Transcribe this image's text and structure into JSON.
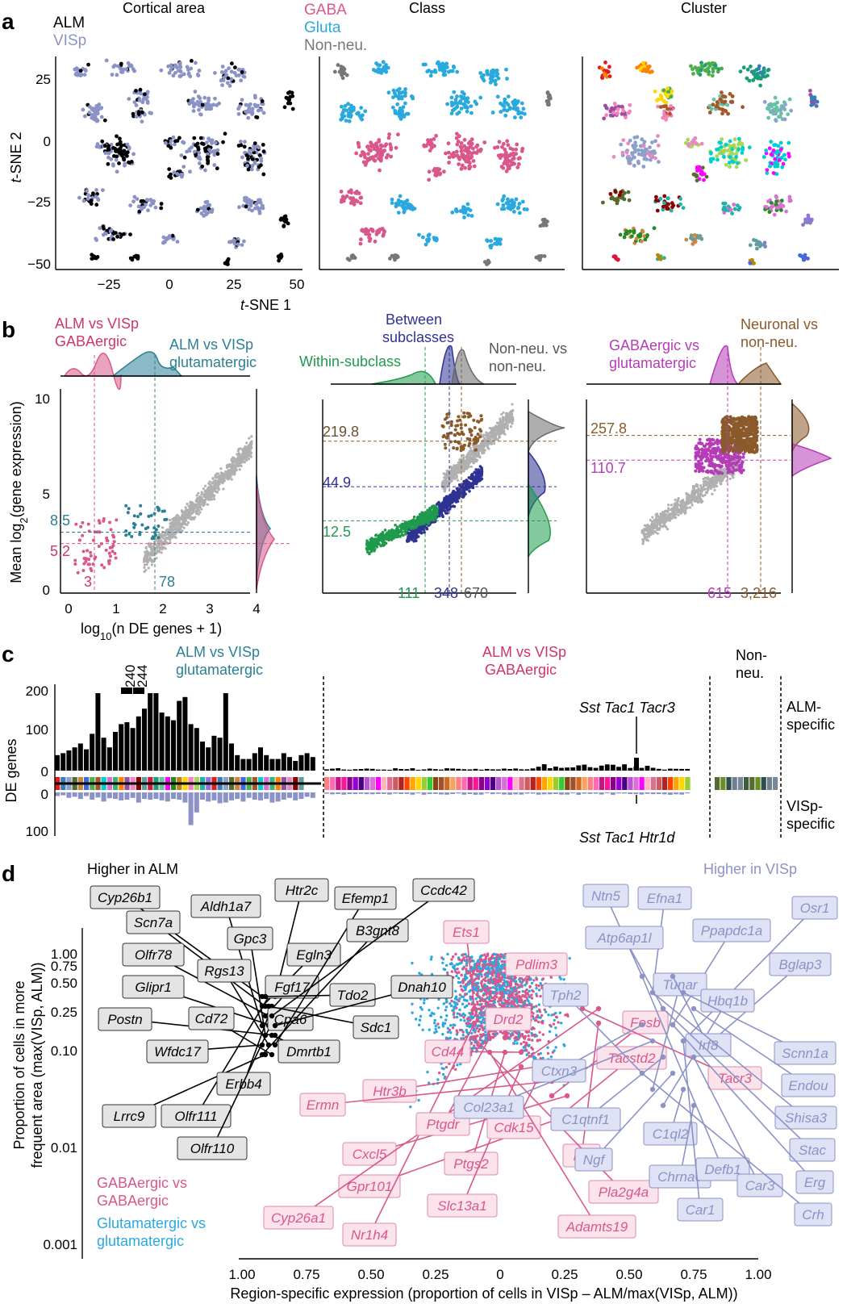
{
  "colors": {
    "alm": "#000000",
    "visp": "#8b93c6",
    "gaba": "#d9578b",
    "gluta": "#2aa9df",
    "nonneu": "#777777",
    "teal": "#2c7f95",
    "green": "#1f9a4c",
    "navy": "#2e3393",
    "brown": "#8b5a2b",
    "purple": "#b53cb6",
    "grey": "#b0b0b0"
  },
  "panel_a": {
    "letter": "a",
    "titles": [
      "Cortical area",
      "Class",
      "Cluster"
    ],
    "legend1": [
      "ALM",
      "VISp"
    ],
    "legend2": [
      "GABA",
      "Gluta",
      "Non-neu."
    ],
    "xlabel_main": "t",
    "xlabel_rest": "-SNE 1",
    "ylabel_main": "t",
    "ylabel_rest": "-SNE 2",
    "xticks": [
      "−25",
      "0",
      "25",
      "50"
    ],
    "yticks": [
      "25",
      "0",
      "−25",
      "−50"
    ]
  },
  "panel_b": {
    "letter": "b",
    "p1_title1": [
      "ALM vs VISp",
      "GABAergic"
    ],
    "p1_title2": [
      "ALM vs VISp",
      "glutamatergic"
    ],
    "p2_title_between": [
      "Between",
      "subclasses"
    ],
    "p2_title_within": "Within-subclass",
    "p2_title_nonneu": [
      "Non-neu. vs",
      "non-neu."
    ],
    "p3_title_gaba": [
      "GABAergic vs",
      "glutamatergic"
    ],
    "p3_title_neu": [
      "Neuronal vs",
      "non-neu."
    ],
    "ylabel_a": "Mean log",
    "ylabel_sub": "2",
    "ylabel_b": "(gene expression)",
    "xlabel_a": "log",
    "xlabel_sub": "10",
    "xlabel_b": "(n DE genes + 1)",
    "yticks": [
      "0",
      "5",
      "10"
    ],
    "xticks": [
      "0",
      "1",
      "2",
      "3",
      "4"
    ],
    "p1_h": [
      "8.5",
      "5.2"
    ],
    "p1_v": [
      "3",
      "78"
    ],
    "p2_h": [
      "219.8",
      "44.9",
      "12.5"
    ],
    "p2_v": [
      "111",
      "348",
      "670"
    ],
    "p3_h": [
      "257.8",
      "110.7"
    ],
    "p3_v": [
      "615",
      "3,216"
    ]
  },
  "panel_c": {
    "letter": "c",
    "sec1": [
      "ALM vs VISp",
      "glutamatergic"
    ],
    "sec2": [
      "ALM vs VISp",
      "GABAergic"
    ],
    "sec3": [
      "Non-",
      "neu."
    ],
    "top_labels": [
      "240",
      "244"
    ],
    "yticks_top": [
      "200",
      "100",
      "0"
    ],
    "yticks_bot": [
      "0",
      "100"
    ],
    "ylabel": "DE genes",
    "right_top": [
      "ALM-",
      "specific"
    ],
    "right_bot": [
      "VISp-",
      "specific"
    ],
    "callout_top": "Sst Tac1 Tacr3",
    "callout_bot": "Sst Tac1 Htr1d"
  },
  "chart_data": {
    "type": "bar",
    "title": "",
    "glutamatergic_alm_specific": [
      40,
      45,
      52,
      60,
      70,
      55,
      95,
      200,
      85,
      60,
      100,
      120,
      125,
      110,
      140,
      160,
      240,
      244,
      150,
      140,
      130,
      180,
      190,
      120,
      110,
      75,
      60,
      90,
      85,
      200,
      70,
      40,
      30,
      30,
      45,
      60,
      40,
      30,
      30,
      45,
      35,
      25,
      40,
      45,
      35
    ],
    "glutamatergic_visp_specific": [
      10,
      8,
      15,
      12,
      18,
      10,
      20,
      14,
      25,
      16,
      18,
      22,
      20,
      15,
      28,
      18,
      20,
      18,
      22,
      25,
      18,
      20,
      28,
      90,
      55,
      20,
      25,
      22,
      30,
      28,
      22,
      18,
      25,
      15,
      20,
      22,
      18,
      28,
      25,
      20,
      15,
      22,
      18,
      12,
      15
    ]
  },
  "panel_d": {
    "letter": "d",
    "higher_alm": "Higher in ALM",
    "higher_visp": "Higher in VISp",
    "legend1": [
      "GABAergic vs",
      "GABAergic"
    ],
    "legend2": [
      "Glutamatergic vs",
      "glutamatergic"
    ],
    "yticks": [
      "1.00",
      "0.75",
      "0.50",
      "0.25",
      "0.10",
      "0.01",
      "0.001"
    ],
    "xticks": [
      "1.00",
      "0.75",
      "0.50",
      "0.25",
      "0",
      "0.25",
      "0.50",
      "0.75",
      "1.00"
    ],
    "ylabel1": "Proportion of cells in more",
    "ylabel2": "frequent area (max(VISp, ALM))",
    "xlabel": "Region-specific expression (proportion of cells in VISp – ALM/max(VISp, ALM))",
    "alm_genes": [
      "Cyp26b1",
      "Scn7a",
      "Olfr78",
      "Glipr1",
      "Postn",
      "Wfdc17",
      "Lrrc9",
      "Olfr111",
      "Erbb4",
      "Olfr110",
      "Aldh1a7",
      "Gpc3",
      "Rgs13",
      "Cd72",
      "Htr2c",
      "Egln3",
      "Fgf17",
      "Cpa6",
      "Dmrtb1",
      "Efemp1",
      "B3gnt8",
      "Tdo2",
      "Sdc1",
      "Ccdc42",
      "Dnah10"
    ],
    "gaba_genes": [
      "Ets1",
      "Pdlim3",
      "Drd2",
      "Cd44",
      "Htr3b",
      "Ermn",
      "Cxcl5",
      "Gpr101",
      "Cyp26a1",
      "Nr1h4",
      "Ptgdr",
      "Ptgs2",
      "Slc13a1",
      "Cdk15",
      "Fosb",
      "Tacstd2",
      "Tacr3",
      "Dtl",
      "Pla2g4a",
      "Adamts19"
    ],
    "visp_genes": [
      "Ntn5",
      "Efna1",
      "Atp6ap1l",
      "Ppapdc1a",
      "Osr1",
      "Bglap3",
      "Tph2",
      "Tunar",
      "Hbq1b",
      "Irf8",
      "Scnn1a",
      "Endou",
      "Ctxn3",
      "Col23a1",
      "C1qtnf1",
      "Ngf",
      "C1ql2",
      "Chrna6",
      "Defb1",
      "Shisa3",
      "Stac",
      "Erg",
      "Car1",
      "Car3",
      "Crh"
    ]
  }
}
